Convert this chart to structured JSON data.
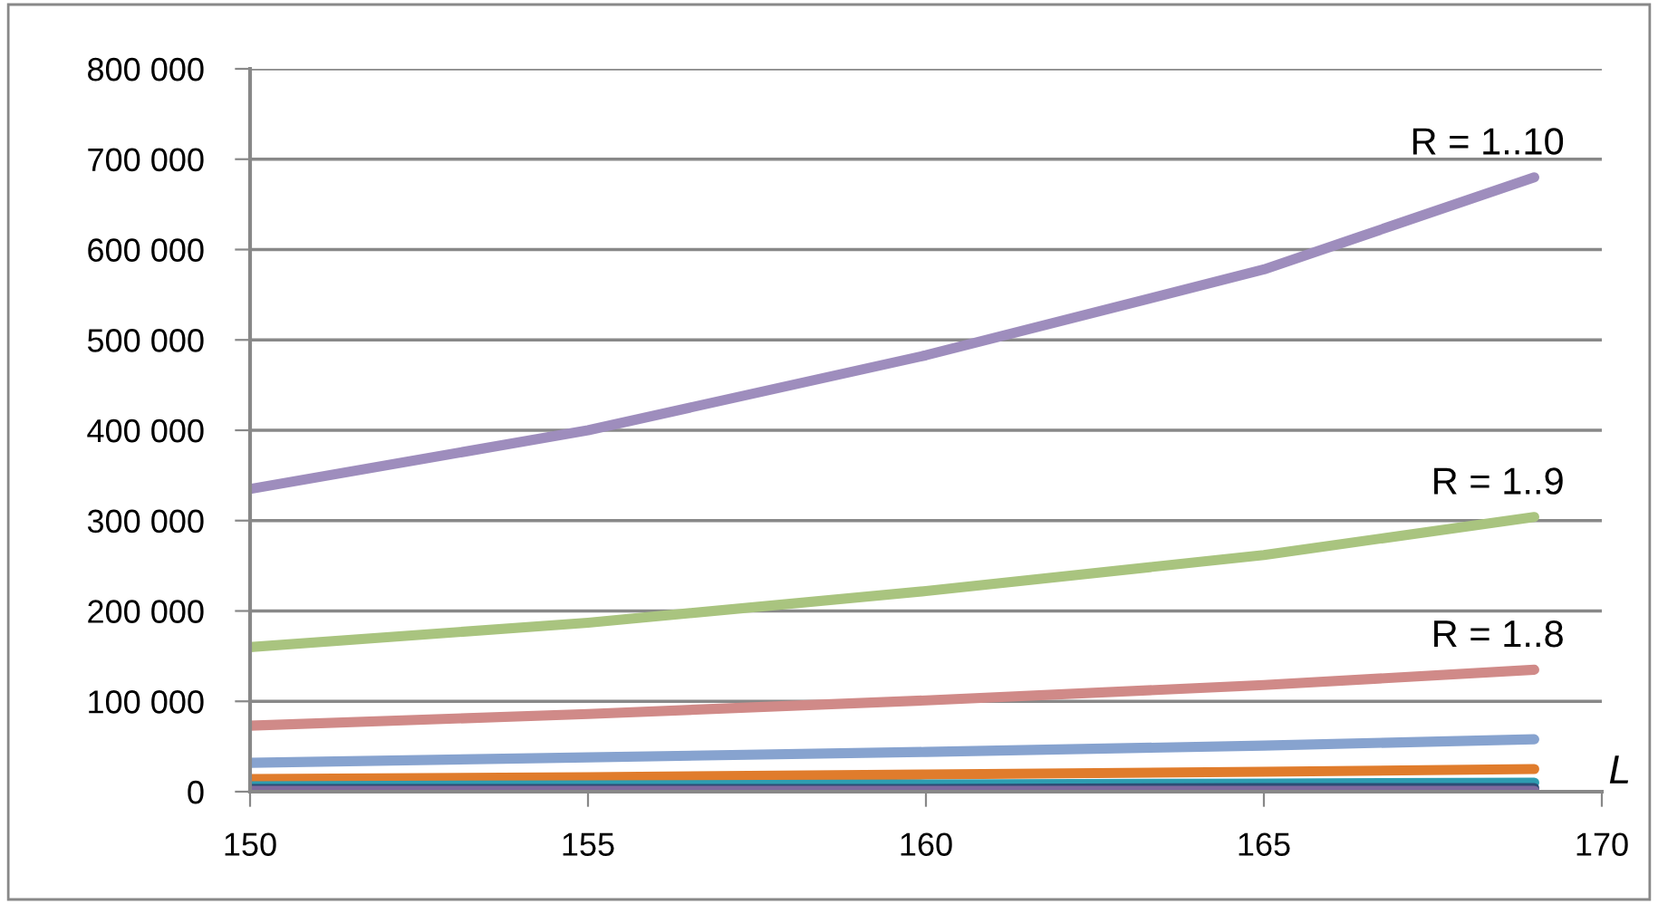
{
  "chart_data": {
    "type": "line",
    "xlabel": "L",
    "x": [
      150,
      155,
      160,
      165,
      169
    ],
    "series": [
      {
        "color": "#9e8dbd",
        "values": [
          335000,
          400000,
          483000,
          578000,
          680000
        ]
      },
      {
        "color": "#a9c47f",
        "values": [
          160000,
          187000,
          222000,
          262000,
          304000
        ]
      },
      {
        "color": "#d08a88",
        "values": [
          73000,
          86000,
          101000,
          118000,
          135000
        ]
      },
      {
        "color": "#87a3cf",
        "values": [
          32000,
          38000,
          44000,
          51000,
          58000
        ]
      },
      {
        "color": "#e07c2c",
        "values": [
          14000,
          16000,
          19000,
          22000,
          25000
        ]
      },
      {
        "color": "#2e9cb0",
        "values": [
          6000,
          7000,
          8000,
          9000,
          10000
        ]
      },
      {
        "color": "#2c4d75",
        "values": [
          3000,
          3000,
          3000,
          4000,
          4000
        ]
      },
      {
        "color": "#7f6a9e",
        "values": [
          1000,
          1000,
          1000,
          1000,
          1000
        ]
      }
    ],
    "annotations": [
      "R = 1..10",
      "R = 1..9",
      "R = 1..8"
    ],
    "xlim": [
      150,
      170
    ],
    "xticks": [
      150,
      155,
      160,
      165,
      170
    ],
    "ylim": [
      0,
      800000
    ],
    "yticks": [
      {
        "value": 0,
        "label": "0"
      },
      {
        "value": 100000,
        "label": "100 000"
      },
      {
        "value": 200000,
        "label": "200 000"
      },
      {
        "value": 300000,
        "label": "300 000"
      },
      {
        "value": 400000,
        "label": "400 000"
      },
      {
        "value": 500000,
        "label": "500 000"
      },
      {
        "value": 600000,
        "label": "600 000"
      },
      {
        "value": 700000,
        "label": "700 000"
      },
      {
        "value": 800000,
        "label": "800 000"
      }
    ],
    "grid": "y",
    "marker": "none",
    "line_style": "solid",
    "legend": false
  }
}
